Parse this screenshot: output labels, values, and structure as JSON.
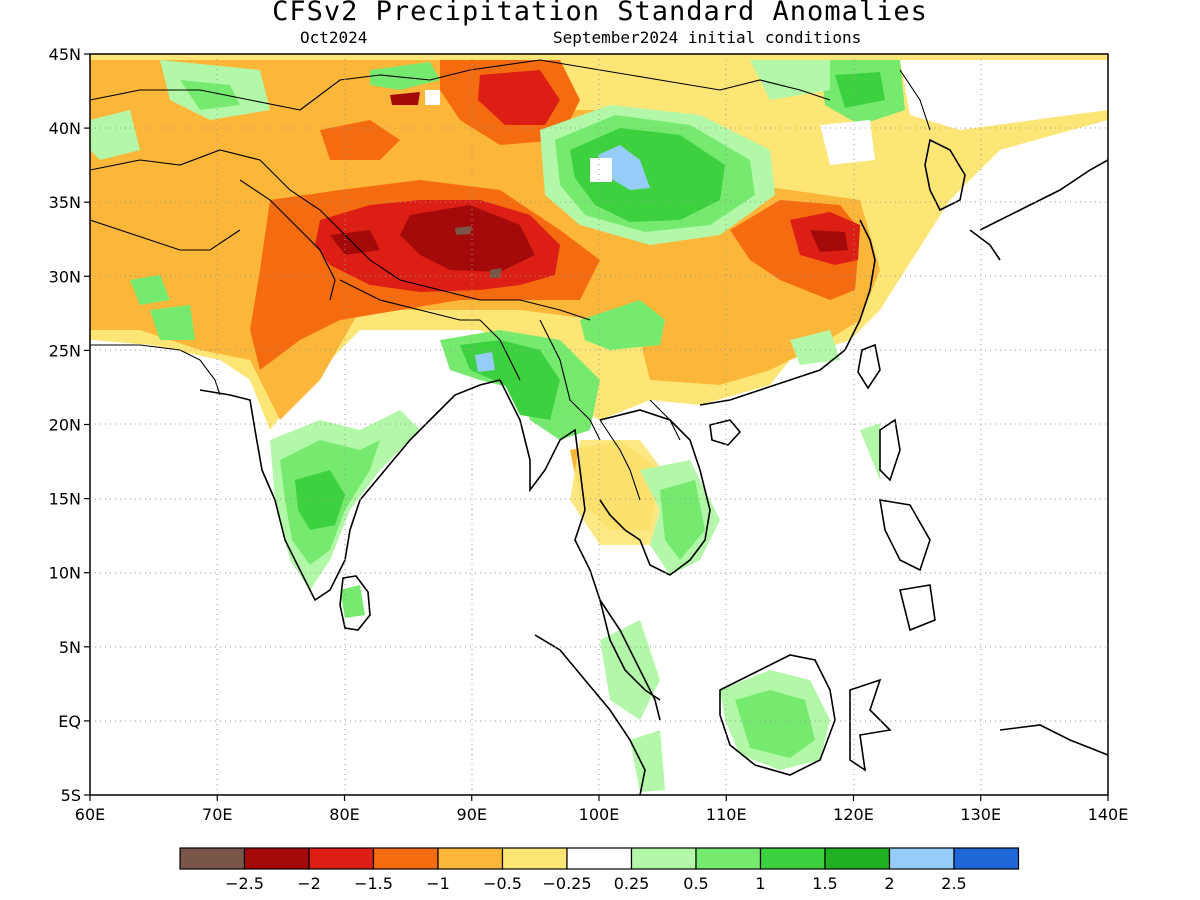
{
  "title": "CFSv2 Precipitation Standard Anomalies",
  "subtitle_left": "Oct2024",
  "subtitle_right": "September2024 initial conditions",
  "map": {
    "lon_range": [
      60,
      140
    ],
    "lat_range": [
      -5,
      45
    ],
    "lon_ticks": [
      "60E",
      "70E",
      "80E",
      "90E",
      "100E",
      "110E",
      "120E",
      "130E",
      "140E"
    ],
    "lat_ticks": [
      "45N",
      "40N",
      "35N",
      "30N",
      "25N",
      "20N",
      "15N",
      "10N",
      "5N",
      "EQ",
      "5S"
    ],
    "gridlines": "dotted"
  },
  "colorbar": {
    "colors": [
      "#7a5649",
      "#a50a0a",
      "#dc1e14",
      "#f56c10",
      "#fcb639",
      "#fde576",
      "#ffffff",
      "#b3f8a8",
      "#76ea6f",
      "#3dd140",
      "#21b022",
      "#96cdf8",
      "#1f66d6"
    ],
    "labels": [
      "−2.5",
      "−2",
      "−1.5",
      "−1",
      "−0.5",
      "−0.25",
      "0.25",
      "0.5",
      "1",
      "1.5",
      "2",
      "2.5"
    ]
  }
}
